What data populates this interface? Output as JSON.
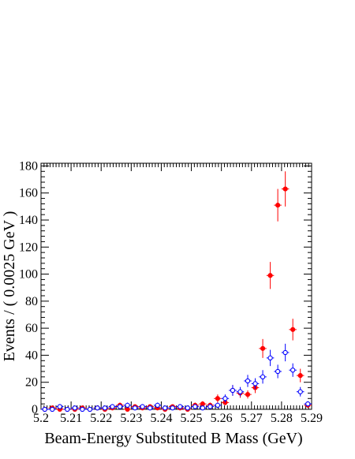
{
  "chart_data": {
    "type": "scatter",
    "title": "",
    "xlabel": "Beam-Energy Substituted B Mass (GeV)",
    "ylabel": "Events / ( 0.0025 GeV )",
    "xlim": [
      5.2,
      5.29
    ],
    "ylim": [
      0,
      182
    ],
    "grid": false,
    "x_ticks": [
      "5.2",
      "5.21",
      "5.22",
      "5.23",
      "5.24",
      "5.25",
      "5.26",
      "5.27",
      "5.28",
      "5.29"
    ],
    "y_ticks": [
      "0",
      "20",
      "40",
      "60",
      "80",
      "100",
      "120",
      "140",
      "160",
      "180"
    ],
    "series": [
      {
        "color": "#ff0000",
        "marker": "filled-circle",
        "x": [
          5.20125,
          5.20375,
          5.20625,
          5.20875,
          5.21125,
          5.21375,
          5.21625,
          5.21875,
          5.22125,
          5.22375,
          5.22625,
          5.22875,
          5.23125,
          5.23375,
          5.23625,
          5.23875,
          5.24125,
          5.24375,
          5.24625,
          5.24875,
          5.25125,
          5.25375,
          5.25625,
          5.25875,
          5.26125,
          5.26375,
          5.26625,
          5.26875,
          5.27125,
          5.27375,
          5.27625,
          5.27875,
          5.28125,
          5.28375,
          5.28625,
          5.28875
        ],
        "y": [
          0,
          1,
          0,
          0,
          0,
          1,
          0,
          1,
          0,
          1,
          3,
          0,
          2,
          1,
          2,
          1,
          0,
          2,
          1,
          0,
          3,
          4,
          3,
          8,
          5,
          14,
          12,
          11,
          16,
          45,
          99,
          151,
          163,
          59,
          25,
          3
        ],
        "err": [
          1,
          1,
          1,
          1,
          1,
          1,
          1,
          1,
          1,
          1,
          2,
          1,
          1.5,
          1,
          1.5,
          1,
          1,
          1.5,
          1,
          1,
          2,
          2,
          2,
          3,
          2,
          4,
          3.5,
          3,
          4,
          7,
          10,
          12,
          13,
          8,
          5,
          2
        ]
      },
      {
        "color": "#0000ff",
        "marker": "open-circle",
        "x": [
          5.20125,
          5.20375,
          5.20625,
          5.20875,
          5.21125,
          5.21375,
          5.21625,
          5.21875,
          5.22125,
          5.22375,
          5.22625,
          5.22875,
          5.23125,
          5.23375,
          5.23625,
          5.23875,
          5.24125,
          5.24375,
          5.24625,
          5.24875,
          5.25125,
          5.25375,
          5.25625,
          5.25875,
          5.26125,
          5.26375,
          5.26625,
          5.26875,
          5.27125,
          5.27375,
          5.27625,
          5.27875,
          5.28125,
          5.28375,
          5.28625,
          5.28875
        ],
        "y": [
          0,
          0,
          2,
          0,
          1,
          0,
          0,
          1,
          1,
          2,
          2,
          3,
          1,
          2,
          1,
          3,
          1,
          1,
          2,
          1,
          2,
          1,
          2,
          3,
          8,
          14,
          13,
          21,
          19,
          24,
          38,
          28,
          42,
          29,
          13,
          4
        ],
        "err": [
          1,
          1,
          1.5,
          1,
          1,
          1,
          1,
          1,
          1,
          1.5,
          1.5,
          2,
          1,
          1.5,
          1,
          2,
          1,
          1,
          1.5,
          1,
          1.5,
          1,
          1.5,
          2,
          3,
          4,
          3.5,
          4.5,
          4,
          5,
          6,
          5,
          6.5,
          5,
          3.5,
          2
        ]
      }
    ]
  }
}
